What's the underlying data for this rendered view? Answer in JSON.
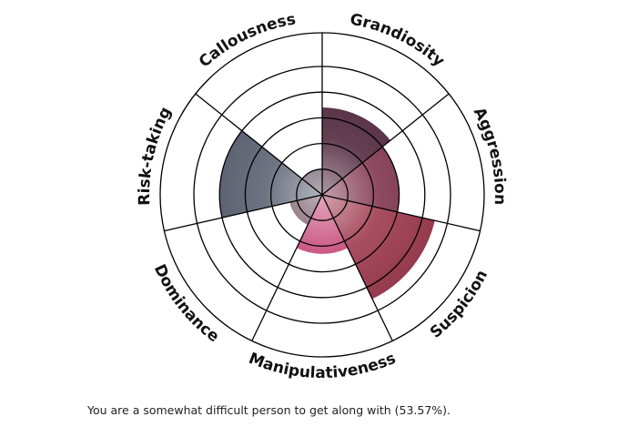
{
  "chart_data": {
    "type": "polar-area",
    "categories": [
      "Grandiosity",
      "Aggression",
      "Suspicion",
      "Manipulativeness",
      "Dominance",
      "Risk-taking",
      "Callousness"
    ],
    "values": [
      3.4,
      3.0,
      4.5,
      2.3,
      1.3,
      4.0,
      1.0
    ],
    "max": 5,
    "rings": 5,
    "grid": true,
    "colors": [
      "#4a1e35",
      "#7a2a45",
      "#9b3047",
      "#c23d6e",
      "#6e4a58",
      "#545b6c",
      "#5a4a58"
    ]
  },
  "result": {
    "text": "You are a somewhat difficult person to get along with (53.57%)."
  }
}
